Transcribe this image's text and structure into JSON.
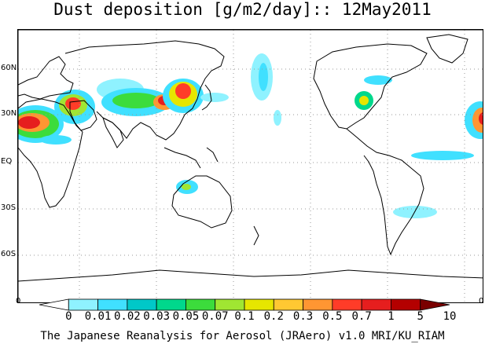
{
  "title": "Dust deposition [g/m2/day]:: 12May2011",
  "footer": "The Japanese Reanalysis for Aerosol (JRAero) v1.0 MRI/KU_RIAM",
  "latitude_labels": [
    "60N",
    "30N",
    "EQ",
    "30S",
    "60S"
  ],
  "scale_ends": {
    "left": "0",
    "right": "0"
  },
  "legend": {
    "labels": [
      "0",
      "0.01",
      "0.02",
      "0.03",
      "0.05",
      "0.07",
      "0.1",
      "0.2",
      "0.3",
      "0.5",
      "0.7",
      "1",
      "5",
      "10"
    ],
    "colors": [
      "#ffffff",
      "#8ff2ff",
      "#40e0ff",
      "#00c8c8",
      "#00d88c",
      "#3cdc3c",
      "#a0e632",
      "#e6e600",
      "#ffc832",
      "#ff9632",
      "#ff3c28",
      "#e61e1e",
      "#b40000",
      "#7a0000"
    ]
  },
  "colors": {
    "coast": "#000000",
    "grid": "#9a9a9a",
    "frame": "#000000"
  }
}
